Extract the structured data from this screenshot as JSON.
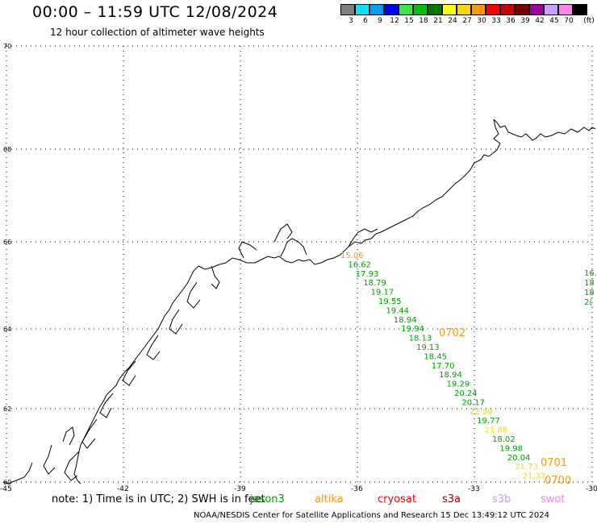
{
  "header": {
    "title": "00:00 – 11:59 UTC 12/08/2024",
    "subtitle": "12 hour collection of altimeter wave heights"
  },
  "legend": {
    "unit": "(ft)",
    "bins": [
      {
        "label": "3",
        "color": "#7f7f7f"
      },
      {
        "label": "6",
        "color": "#00e5ff"
      },
      {
        "label": "9",
        "color": "#00a0ff"
      },
      {
        "label": "12",
        "color": "#0000ff"
      },
      {
        "label": "15",
        "color": "#3ce63c"
      },
      {
        "label": "18",
        "color": "#00c000"
      },
      {
        "label": "21",
        "color": "#007800"
      },
      {
        "label": "24",
        "color": "#ffff00"
      },
      {
        "label": "27",
        "color": "#ffd700"
      },
      {
        "label": "30",
        "color": "#ff9900"
      },
      {
        "label": "33",
        "color": "#ff0000"
      },
      {
        "label": "36",
        "color": "#c80000"
      },
      {
        "label": "39",
        "color": "#780000"
      },
      {
        "label": "42",
        "color": "#a000a0"
      },
      {
        "label": "45",
        "color": "#c8a0ff"
      },
      {
        "label": "70",
        "color": "#ff82e6"
      },
      {
        "label": "",
        "color": "#000000"
      }
    ]
  },
  "map": {
    "lat_labels": [
      "70",
      "68",
      "66",
      "64",
      "62",
      "60"
    ],
    "lon_labels": [
      "-45",
      "-42",
      "-39",
      "-36",
      "-33",
      "-30"
    ],
    "pass_labels": [
      "0702",
      "0701",
      "0700"
    ],
    "track_values": [
      {
        "v": "15.06",
        "color": "#ff9900"
      },
      {
        "v": "16.62",
        "color": "#00a000"
      },
      {
        "v": "17.93",
        "color": "#00a000"
      },
      {
        "v": "18.79",
        "color": "#00a000"
      },
      {
        "v": "19.17",
        "color": "#00a000"
      },
      {
        "v": "19.55",
        "color": "#00a000"
      },
      {
        "v": "19.44",
        "color": "#00a000"
      },
      {
        "v": "18.94",
        "color": "#00a000"
      },
      {
        "v": "19.94",
        "color": "#00a000"
      },
      {
        "v": "18.13",
        "color": "#00a000"
      },
      {
        "v": "19.13",
        "color": "#00a000"
      },
      {
        "v": "18.45",
        "color": "#00a000"
      },
      {
        "v": "17.70",
        "color": "#00a000"
      },
      {
        "v": "18.94",
        "color": "#00a000"
      },
      {
        "v": "19.29",
        "color": "#00a000"
      },
      {
        "v": "20.24",
        "color": "#00a000"
      },
      {
        "v": "20.17",
        "color": "#00a000"
      },
      {
        "v": "22.99",
        "color": "#e6e600"
      },
      {
        "v": "19.77",
        "color": "#00a000"
      },
      {
        "v": "21.88",
        "color": "#e6e600"
      },
      {
        "v": "18.02",
        "color": "#00a000"
      },
      {
        "v": "19.98",
        "color": "#00a000"
      },
      {
        "v": "20.04",
        "color": "#00a000"
      },
      {
        "v": "21.73",
        "color": "#e6e600"
      },
      {
        "v": "21.32",
        "color": "#e6e600"
      }
    ],
    "edge_values": [
      "16.",
      "18",
      "18",
      "2("
    ]
  },
  "footer": {
    "note": "note: 1) Time is in UTC; 2) SWH is in feet",
    "satellites": [
      {
        "name": "jason3",
        "color": "#00a000"
      },
      {
        "name": "altika",
        "color": "#ff9900"
      },
      {
        "name": "cryosat",
        "color": "#ff0000"
      },
      {
        "name": "s3a",
        "color": "#a00000"
      },
      {
        "name": "s3b",
        "color": "#c8a0ff"
      },
      {
        "name": "swot",
        "color": "#ff82e6"
      }
    ],
    "credit": "NOAA/NESDIS Center for Satellite Applications and Research    15 Dec 13:49:12 UTC 2024"
  }
}
